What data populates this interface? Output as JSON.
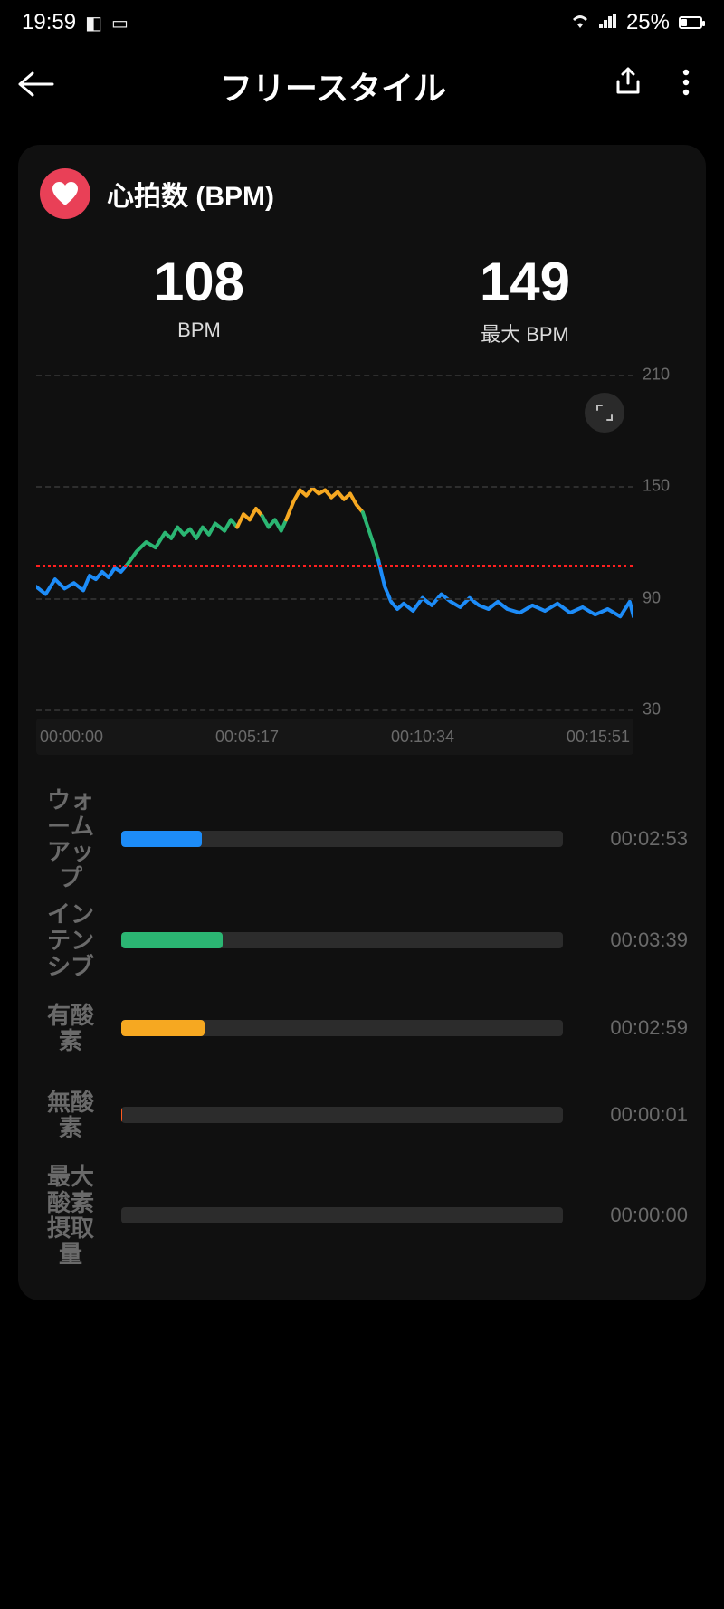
{
  "statusbar": {
    "time": "19:59",
    "battery_pct": "25%",
    "battery_fill_pct": 25
  },
  "appbar": {
    "title": "フリースタイル"
  },
  "section": {
    "title": "心拍数 (BPM)",
    "heart_badge_color": "#e94057"
  },
  "metrics": {
    "avg": {
      "value": "108",
      "label": "BPM"
    },
    "max": {
      "value": "149",
      "label": "最大 BPM"
    }
  },
  "chart": {
    "type": "line",
    "bg_color": "#101010",
    "grid_color": "#2e2e2e",
    "avg_line_color": "#ff1f1f",
    "ymin": 30,
    "ymax": 210,
    "avg_value": 108,
    "yticks": [
      210,
      150,
      90,
      30
    ],
    "xticks": [
      "00:00:00",
      "00:05:17",
      "00:10:34",
      "00:15:51"
    ],
    "xmax_seconds": 951,
    "line_width": 4,
    "segments": [
      {
        "color": "#1d8cf8",
        "points": [
          [
            0,
            96
          ],
          [
            15,
            92
          ],
          [
            30,
            100
          ],
          [
            45,
            95
          ],
          [
            60,
            98
          ],
          [
            75,
            94
          ],
          [
            85,
            102
          ],
          [
            95,
            100
          ],
          [
            105,
            104
          ],
          [
            115,
            101
          ],
          [
            125,
            106
          ],
          [
            135,
            104
          ],
          [
            145,
            108
          ]
        ]
      },
      {
        "color": "#2bb673",
        "points": [
          [
            145,
            108
          ],
          [
            160,
            115
          ],
          [
            175,
            120
          ],
          [
            190,
            117
          ],
          [
            205,
            125
          ],
          [
            215,
            122
          ],
          [
            225,
            128
          ],
          [
            235,
            124
          ],
          [
            245,
            127
          ],
          [
            255,
            122
          ],
          [
            265,
            128
          ],
          [
            275,
            124
          ],
          [
            285,
            130
          ],
          [
            300,
            126
          ],
          [
            310,
            132
          ],
          [
            320,
            128
          ]
        ]
      },
      {
        "color": "#f6a821",
        "points": [
          [
            320,
            128
          ],
          [
            330,
            135
          ],
          [
            340,
            132
          ],
          [
            350,
            138
          ],
          [
            360,
            134
          ]
        ]
      },
      {
        "color": "#2bb673",
        "points": [
          [
            360,
            134
          ],
          [
            370,
            128
          ],
          [
            380,
            132
          ],
          [
            390,
            126
          ],
          [
            398,
            132
          ]
        ]
      },
      {
        "color": "#f6a821",
        "points": [
          [
            398,
            132
          ],
          [
            410,
            142
          ],
          [
            420,
            148
          ],
          [
            430,
            145
          ],
          [
            440,
            149
          ],
          [
            450,
            146
          ],
          [
            460,
            148
          ],
          [
            470,
            144
          ],
          [
            480,
            147
          ],
          [
            490,
            143
          ],
          [
            500,
            146
          ],
          [
            510,
            140
          ],
          [
            520,
            136
          ]
        ]
      },
      {
        "color": "#2bb673",
        "points": [
          [
            520,
            136
          ],
          [
            530,
            126
          ],
          [
            538,
            118
          ],
          [
            545,
            110
          ]
        ]
      },
      {
        "color": "#1d8cf8",
        "points": [
          [
            545,
            110
          ],
          [
            555,
            96
          ],
          [
            565,
            88
          ],
          [
            575,
            84
          ],
          [
            585,
            87
          ],
          [
            600,
            83
          ],
          [
            615,
            90
          ],
          [
            630,
            86
          ],
          [
            645,
            92
          ],
          [
            660,
            88
          ],
          [
            675,
            85
          ],
          [
            690,
            90
          ],
          [
            705,
            86
          ],
          [
            720,
            84
          ],
          [
            735,
            88
          ],
          [
            750,
            84
          ],
          [
            770,
            82
          ],
          [
            790,
            86
          ],
          [
            810,
            83
          ],
          [
            830,
            87
          ],
          [
            850,
            82
          ],
          [
            870,
            85
          ],
          [
            890,
            81
          ],
          [
            910,
            84
          ],
          [
            930,
            80
          ],
          [
            945,
            88
          ],
          [
            951,
            80
          ]
        ]
      }
    ]
  },
  "zones": {
    "total_seconds": 951,
    "track_color": "#2c2c2c",
    "items": [
      {
        "label": "ウォームアップ",
        "duration": "00:02:53",
        "seconds": 173,
        "color": "#1d8cf8"
      },
      {
        "label": "インテンシブ",
        "duration": "00:03:39",
        "seconds": 219,
        "color": "#2bb673"
      },
      {
        "label": "有酸素",
        "duration": "00:02:59",
        "seconds": 179,
        "color": "#f6a821"
      },
      {
        "label": "無酸素",
        "duration": "00:00:01",
        "seconds": 1,
        "color": "#ff5a1f"
      },
      {
        "label": "最大酸素摂取量",
        "duration": "00:00:00",
        "seconds": 0,
        "color": "#ff1f4b"
      }
    ]
  }
}
